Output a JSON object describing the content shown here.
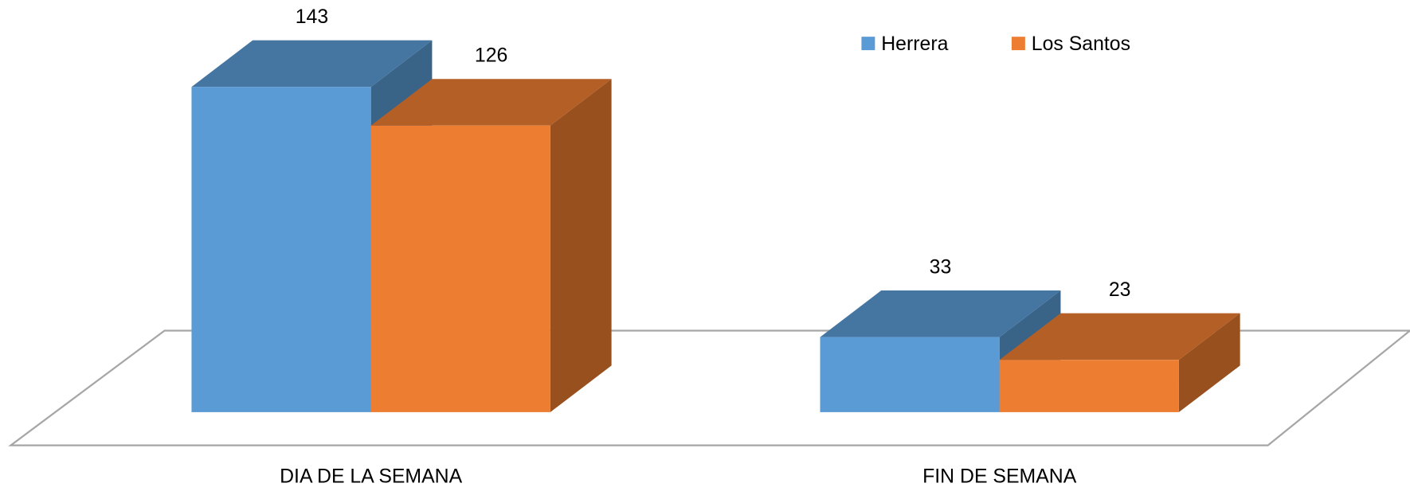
{
  "chart_data": {
    "type": "bar3d",
    "categories": [
      "DIA DE LA SEMANA",
      "FIN DE SEMANA"
    ],
    "series": [
      {
        "name": "Herrera",
        "color": "#5b9bd5",
        "values": [
          143,
          33
        ]
      },
      {
        "name": "Los Santos",
        "color": "#ed7d31",
        "values": [
          126,
          23
        ]
      }
    ],
    "legend": "top-right"
  }
}
